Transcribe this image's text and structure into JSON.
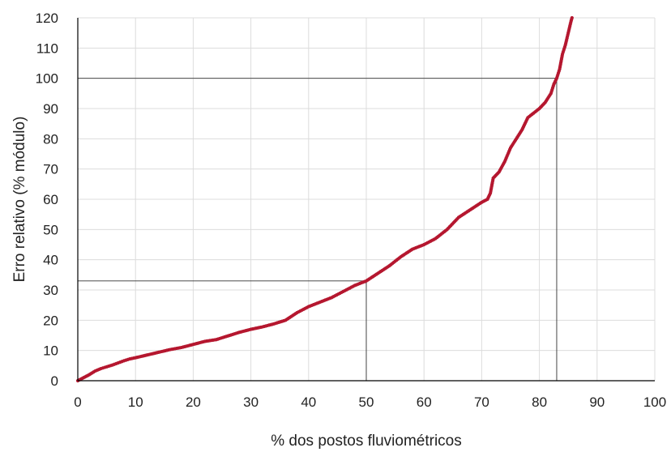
{
  "chart_data": {
    "type": "scatter",
    "title": "",
    "xlabel": "% dos postos fluviométricos",
    "ylabel": "Erro relativo (% módulo)",
    "xlim": [
      0,
      100
    ],
    "ylim": [
      0,
      120
    ],
    "xticks": [
      0,
      10,
      20,
      30,
      40,
      50,
      60,
      70,
      80,
      90,
      100
    ],
    "yticks": [
      0,
      10,
      20,
      30,
      40,
      50,
      60,
      70,
      80,
      90,
      100,
      110,
      120
    ],
    "grid": true,
    "legend": "none",
    "marker_color": "#b5172f",
    "reference_lines": [
      {
        "x": 50,
        "y": 33
      },
      {
        "x": 83,
        "y": 100
      }
    ],
    "points": [
      [
        0,
        0
      ],
      [
        1,
        1
      ],
      [
        2,
        2
      ],
      [
        3,
        3.2
      ],
      [
        4,
        4
      ],
      [
        5,
        4.6
      ],
      [
        6,
        5.2
      ],
      [
        7,
        5.9
      ],
      [
        8,
        6.6
      ],
      [
        9,
        7.2
      ],
      [
        10,
        7.6
      ],
      [
        12,
        8.5
      ],
      [
        14,
        9.4
      ],
      [
        16,
        10.3
      ],
      [
        18,
        11.0
      ],
      [
        20,
        12.0
      ],
      [
        22,
        13.0
      ],
      [
        24,
        13.6
      ],
      [
        26,
        14.8
      ],
      [
        28,
        16.0
      ],
      [
        30,
        17.0
      ],
      [
        32,
        17.8
      ],
      [
        34,
        18.8
      ],
      [
        36,
        20.0
      ],
      [
        38,
        22.5
      ],
      [
        40,
        24.5
      ],
      [
        42,
        26.0
      ],
      [
        44,
        27.5
      ],
      [
        46,
        29.5
      ],
      [
        48,
        31.5
      ],
      [
        50,
        33.0
      ],
      [
        52,
        35.5
      ],
      [
        54,
        38.0
      ],
      [
        56,
        41.0
      ],
      [
        58,
        43.5
      ],
      [
        60,
        45.0
      ],
      [
        62,
        47.0
      ],
      [
        64,
        50.0
      ],
      [
        66,
        54.0
      ],
      [
        68,
        56.5
      ],
      [
        70,
        59.0
      ],
      [
        71,
        60.0
      ],
      [
        71.5,
        62.0
      ],
      [
        72,
        67.0
      ],
      [
        73,
        69.0
      ],
      [
        74,
        72.5
      ],
      [
        75,
        77.0
      ],
      [
        76,
        80.0
      ],
      [
        77,
        83.0
      ],
      [
        78,
        87.0
      ],
      [
        79,
        88.5
      ],
      [
        80,
        90.0
      ],
      [
        81,
        92.0
      ],
      [
        82,
        95.0
      ],
      [
        82.5,
        98.0
      ],
      [
        83,
        100.0
      ],
      [
        83.5,
        103.0
      ],
      [
        84,
        108.0
      ],
      [
        84.5,
        111.0
      ],
      [
        85,
        115.0
      ],
      [
        85.5,
        119.0
      ],
      [
        85.8,
        121.0
      ]
    ]
  }
}
